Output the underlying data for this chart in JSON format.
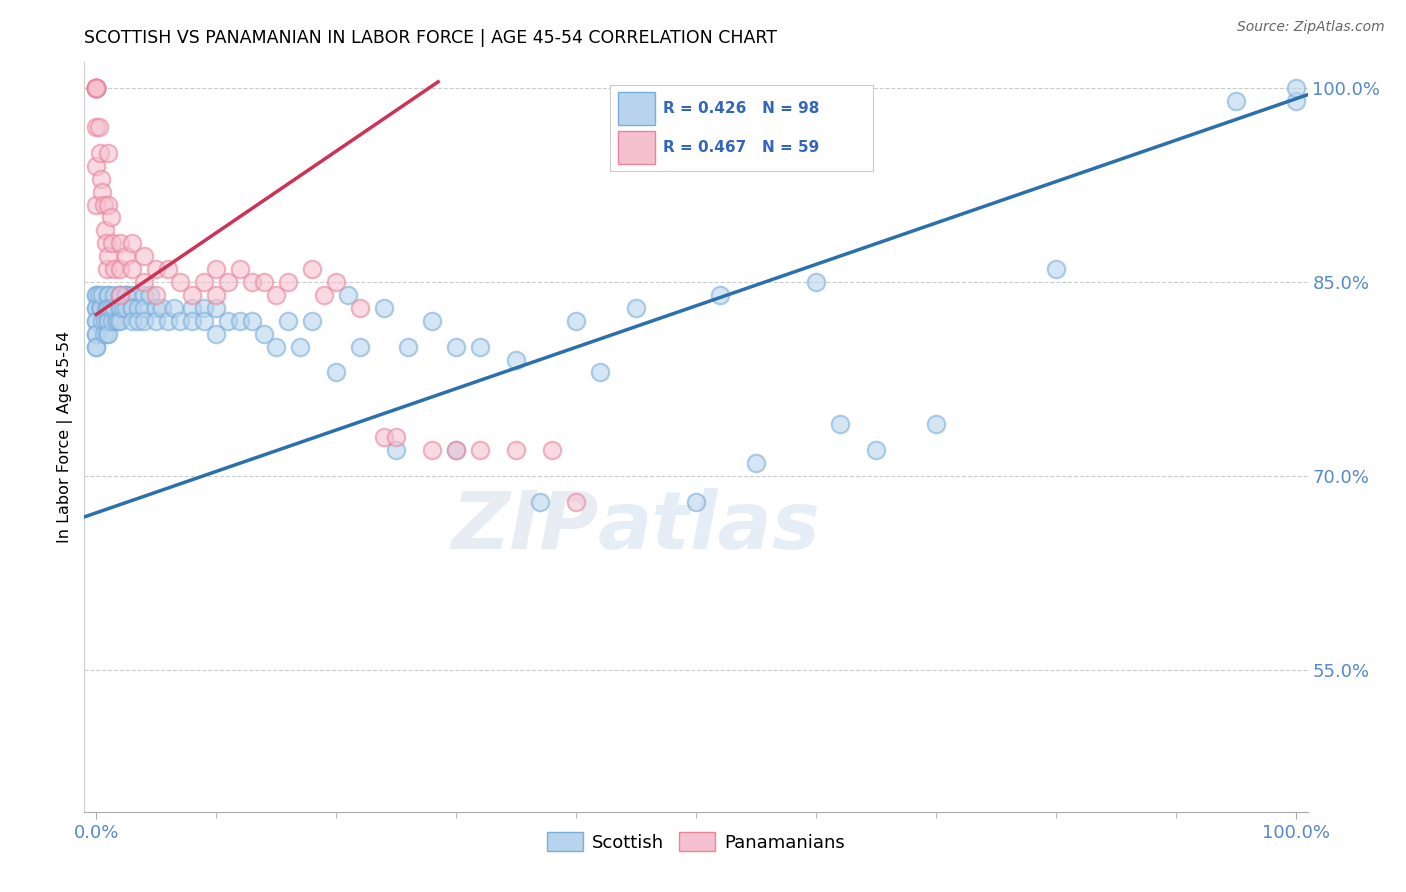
{
  "title": "SCOTTISH VS PANAMANIAN IN LABOR FORCE | AGE 45-54 CORRELATION CHART",
  "source": "Source: ZipAtlas.com",
  "ylabel": "In Labor Force | Age 45-54",
  "watermark_zip": "ZIP",
  "watermark_atlas": "atlas",
  "blue_r": 0.426,
  "blue_n": 98,
  "pink_r": 0.467,
  "pink_n": 59,
  "blue_fill": "#b8d4ec",
  "blue_edge": "#7aaedb",
  "pink_fill": "#f5c0cf",
  "pink_edge": "#e8869c",
  "blue_line_color": "#2c6fad",
  "pink_line_color": "#cc3355",
  "legend_text_color": "#3366bb",
  "ytick_color": "#5588cc",
  "xtick_color": "#5588cc",
  "grid_color": "#cccccc",
  "legend_label_blue": "Scottish",
  "legend_label_pink": "Panamanians",
  "xlim": [
    -0.01,
    1.01
  ],
  "ylim": [
    0.44,
    1.02
  ],
  "ytick_vals": [
    0.55,
    0.7,
    0.85,
    1.0
  ],
  "ytick_labels": [
    "55.0%",
    "70.0%",
    "85.0%",
    "100.0%"
  ],
  "blue_line_x0": -0.02,
  "blue_line_x1": 1.01,
  "blue_line_y0": 0.665,
  "blue_line_y1": 0.995,
  "pink_line_x0": 0.0,
  "pink_line_x1": 0.285,
  "pink_line_y0": 0.825,
  "pink_line_y1": 1.005,
  "blue_scatter_x": [
    0.0,
    0.0,
    0.0,
    0.0,
    0.0,
    0.0,
    0.0,
    0.0,
    0.0,
    0.0,
    0.002,
    0.003,
    0.004,
    0.005,
    0.005,
    0.006,
    0.007,
    0.008,
    0.009,
    0.01,
    0.01,
    0.01,
    0.01,
    0.01,
    0.01,
    0.01,
    0.012,
    0.013,
    0.015,
    0.015,
    0.016,
    0.018,
    0.02,
    0.02,
    0.02,
    0.02,
    0.02,
    0.022,
    0.025,
    0.025,
    0.025,
    0.025,
    0.03,
    0.03,
    0.03,
    0.03,
    0.035,
    0.035,
    0.04,
    0.04,
    0.04,
    0.045,
    0.05,
    0.05,
    0.055,
    0.06,
    0.065,
    0.07,
    0.08,
    0.08,
    0.09,
    0.09,
    0.1,
    0.1,
    0.11,
    0.12,
    0.13,
    0.14,
    0.15,
    0.16,
    0.17,
    0.18,
    0.2,
    0.21,
    0.22,
    0.24,
    0.25,
    0.26,
    0.28,
    0.3,
    0.3,
    0.32,
    0.35,
    0.37,
    0.4,
    0.42,
    0.45,
    0.5,
    0.52,
    0.55,
    0.6,
    0.62,
    0.65,
    0.7,
    0.8,
    0.95,
    1.0,
    1.0
  ],
  "blue_scatter_y": [
    0.84,
    0.84,
    0.83,
    0.83,
    0.82,
    0.82,
    0.81,
    0.81,
    0.8,
    0.8,
    0.84,
    0.83,
    0.83,
    0.84,
    0.82,
    0.81,
    0.82,
    0.83,
    0.81,
    0.84,
    0.84,
    0.83,
    0.83,
    0.82,
    0.82,
    0.81,
    0.83,
    0.82,
    0.84,
    0.83,
    0.82,
    0.82,
    0.84,
    0.84,
    0.83,
    0.83,
    0.82,
    0.83,
    0.84,
    0.84,
    0.84,
    0.83,
    0.84,
    0.83,
    0.83,
    0.82,
    0.83,
    0.82,
    0.84,
    0.83,
    0.82,
    0.84,
    0.83,
    0.82,
    0.83,
    0.82,
    0.83,
    0.82,
    0.83,
    0.82,
    0.83,
    0.82,
    0.83,
    0.81,
    0.82,
    0.82,
    0.82,
    0.81,
    0.8,
    0.82,
    0.8,
    0.82,
    0.78,
    0.84,
    0.8,
    0.83,
    0.72,
    0.8,
    0.82,
    0.8,
    0.72,
    0.8,
    0.79,
    0.68,
    0.82,
    0.78,
    0.83,
    0.68,
    0.84,
    0.71,
    0.85,
    0.74,
    0.72,
    0.74,
    0.86,
    0.99,
    0.99,
    1.0
  ],
  "pink_scatter_x": [
    0.0,
    0.0,
    0.0,
    0.0,
    0.0,
    0.0,
    0.0,
    0.0,
    0.0,
    0.0,
    0.0,
    0.002,
    0.003,
    0.004,
    0.005,
    0.006,
    0.007,
    0.008,
    0.009,
    0.01,
    0.01,
    0.01,
    0.012,
    0.013,
    0.015,
    0.02,
    0.02,
    0.02,
    0.025,
    0.03,
    0.03,
    0.04,
    0.04,
    0.05,
    0.05,
    0.06,
    0.07,
    0.08,
    0.09,
    0.1,
    0.1,
    0.11,
    0.12,
    0.13,
    0.14,
    0.15,
    0.16,
    0.18,
    0.19,
    0.2,
    0.22,
    0.24,
    0.25,
    0.28,
    0.3,
    0.32,
    0.35,
    0.38,
    0.4
  ],
  "pink_scatter_y": [
    1.0,
    1.0,
    1.0,
    1.0,
    1.0,
    1.0,
    1.0,
    1.0,
    0.97,
    0.94,
    0.91,
    0.97,
    0.95,
    0.93,
    0.92,
    0.91,
    0.89,
    0.88,
    0.86,
    0.95,
    0.91,
    0.87,
    0.9,
    0.88,
    0.86,
    0.88,
    0.86,
    0.84,
    0.87,
    0.88,
    0.86,
    0.87,
    0.85,
    0.86,
    0.84,
    0.86,
    0.85,
    0.84,
    0.85,
    0.86,
    0.84,
    0.85,
    0.86,
    0.85,
    0.85,
    0.84,
    0.85,
    0.86,
    0.84,
    0.85,
    0.83,
    0.73,
    0.73,
    0.72,
    0.72,
    0.72,
    0.72,
    0.72,
    0.68
  ]
}
